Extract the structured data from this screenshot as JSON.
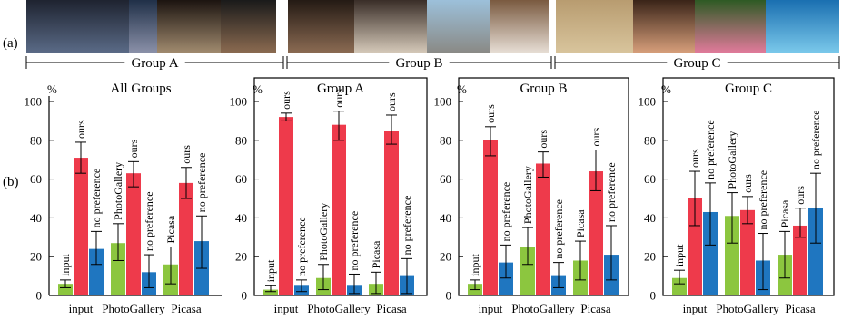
{
  "part_labels": {
    "a": "(a)",
    "b": "(b)"
  },
  "photo_groups": [
    {
      "label": "Group A",
      "photos": [
        "street-night-photo",
        "castle-dusk-photo",
        "sunset-water-photo",
        "woman-shop-photo"
      ]
    },
    {
      "label": "Group B",
      "photos": [
        "group-friends-photo",
        "kids-sofa-photo",
        "harbor-boats-photo",
        "girl-portrait-photo"
      ]
    },
    {
      "label": "Group C",
      "photos": [
        "gate-arch-photo",
        "boy-closeup-photo",
        "pink-flowers-photo",
        "dolphin-show-photo"
      ]
    }
  ],
  "colors": {
    "input": "#8cc63f",
    "ours": "#ee3a4b",
    "no_preference": "#1f76c0",
    "axis": "#000000",
    "photo_palette": [
      "#3a4150",
      "#6a7a9a",
      "#8c7f70",
      "#4a3a33",
      "#5a4a40",
      "#b0aaa0",
      "#7fa0c0",
      "#b3a089",
      "#c9b48d",
      "#c8906a",
      "#c87a90",
      "#2a8fc4"
    ]
  },
  "chart_data": [
    {
      "type": "bar",
      "title": "All Groups",
      "unit": "%",
      "ylim": [
        0,
        100
      ],
      "yticks": [
        0,
        20,
        40,
        60,
        80,
        100
      ],
      "categories": [
        "input",
        "PhotoGallery",
        "Picasa"
      ],
      "bars": [
        {
          "category": "input",
          "label": "input",
          "color": "input",
          "value": 6,
          "err": [
            4,
            8
          ]
        },
        {
          "category": "input",
          "label": "ours",
          "color": "ours",
          "value": 71,
          "err": [
            63,
            79
          ]
        },
        {
          "category": "input",
          "label": "no preference",
          "color": "no_preference",
          "value": 24,
          "err": [
            16,
            33
          ]
        },
        {
          "category": "PhotoGallery",
          "label": "PhotoGallery",
          "color": "input",
          "value": 27,
          "err": [
            18,
            37
          ]
        },
        {
          "category": "PhotoGallery",
          "label": "ours",
          "color": "ours",
          "value": 63,
          "err": [
            56,
            69
          ]
        },
        {
          "category": "PhotoGallery",
          "label": "no preference",
          "color": "no_preference",
          "value": 12,
          "err": [
            4,
            21
          ]
        },
        {
          "category": "Picasa",
          "label": "Picasa",
          "color": "input",
          "value": 16,
          "err": [
            6,
            25
          ]
        },
        {
          "category": "Picasa",
          "label": "ours",
          "color": "ours",
          "value": 58,
          "err": [
            50,
            66
          ]
        },
        {
          "category": "Picasa",
          "label": "no preference",
          "color": "no_preference",
          "value": 28,
          "err": [
            14,
            41
          ]
        }
      ]
    },
    {
      "type": "bar",
      "title": "Group A",
      "unit": "%",
      "ylim": [
        0,
        100
      ],
      "yticks": [
        0,
        20,
        40,
        60,
        80,
        100
      ],
      "categories": [
        "input",
        "PhotoGallery",
        "Picasa"
      ],
      "bars": [
        {
          "category": "input",
          "label": "input",
          "color": "input",
          "value": 3,
          "err": [
            2,
            5
          ]
        },
        {
          "category": "input",
          "label": "ours",
          "color": "ours",
          "value": 92,
          "err": [
            90,
            94
          ]
        },
        {
          "category": "input",
          "label": "no preference",
          "color": "no_preference",
          "value": 5,
          "err": [
            2,
            8
          ]
        },
        {
          "category": "PhotoGallery",
          "label": "PhotoGallery",
          "color": "input",
          "value": 9,
          "err": [
            3,
            16
          ]
        },
        {
          "category": "PhotoGallery",
          "label": "ours",
          "color": "ours",
          "value": 88,
          "err": [
            80,
            95
          ]
        },
        {
          "category": "PhotoGallery",
          "label": "no preference",
          "color": "no_preference",
          "value": 5,
          "err": [
            1,
            11
          ]
        },
        {
          "category": "Picasa",
          "label": "Picasa",
          "color": "input",
          "value": 6,
          "err": [
            1,
            12
          ]
        },
        {
          "category": "Picasa",
          "label": "ours",
          "color": "ours",
          "value": 85,
          "err": [
            78,
            93
          ]
        },
        {
          "category": "Picasa",
          "label": "no preference",
          "color": "no_preference",
          "value": 10,
          "err": [
            1,
            19
          ]
        }
      ]
    },
    {
      "type": "bar",
      "title": "Group B",
      "unit": "%",
      "ylim": [
        0,
        100
      ],
      "yticks": [
        0,
        20,
        40,
        60,
        80,
        100
      ],
      "categories": [
        "input",
        "PhotoGallery",
        "Picasa"
      ],
      "bars": [
        {
          "category": "input",
          "label": "input",
          "color": "input",
          "value": 6,
          "err": [
            3,
            8
          ]
        },
        {
          "category": "input",
          "label": "ours",
          "color": "ours",
          "value": 80,
          "err": [
            72,
            87
          ]
        },
        {
          "category": "input",
          "label": "no preference",
          "color": "no_preference",
          "value": 17,
          "err": [
            9,
            26
          ]
        },
        {
          "category": "PhotoGallery",
          "label": "PhotoGallery",
          "color": "input",
          "value": 25,
          "err": [
            16,
            35
          ]
        },
        {
          "category": "PhotoGallery",
          "label": "ours",
          "color": "ours",
          "value": 68,
          "err": [
            61,
            74
          ]
        },
        {
          "category": "PhotoGallery",
          "label": "no preference",
          "color": "no_preference",
          "value": 10,
          "err": [
            4,
            17
          ]
        },
        {
          "category": "Picasa",
          "label": "Picasa",
          "color": "input",
          "value": 18,
          "err": [
            8,
            28
          ]
        },
        {
          "category": "Picasa",
          "label": "ours",
          "color": "ours",
          "value": 64,
          "err": [
            54,
            75
          ]
        },
        {
          "category": "Picasa",
          "label": "no preference",
          "color": "no_preference",
          "value": 21,
          "err": [
            8,
            36
          ]
        }
      ]
    },
    {
      "type": "bar",
      "title": "Group C",
      "unit": "%",
      "ylim": [
        0,
        100
      ],
      "yticks": [
        0,
        20,
        40,
        60,
        80,
        100
      ],
      "categories": [
        "input",
        "PhotoGallery",
        "Picasa"
      ],
      "bars": [
        {
          "category": "input",
          "label": "input",
          "color": "input",
          "value": 9,
          "err": [
            6,
            13
          ]
        },
        {
          "category": "input",
          "label": "ours",
          "color": "ours",
          "value": 50,
          "err": [
            36,
            64
          ]
        },
        {
          "category": "input",
          "label": "no preference",
          "color": "no_preference",
          "value": 43,
          "err": [
            26,
            58
          ]
        },
        {
          "category": "PhotoGallery",
          "label": "PhotoGallery",
          "color": "input",
          "value": 41,
          "err": [
            27,
            53
          ]
        },
        {
          "category": "PhotoGallery",
          "label": "ours",
          "color": "ours",
          "value": 44,
          "err": [
            37,
            51
          ]
        },
        {
          "category": "PhotoGallery",
          "label": "no preference",
          "color": "no_preference",
          "value": 18,
          "err": [
            3,
            32
          ]
        },
        {
          "category": "Picasa",
          "label": "Picasa",
          "color": "input",
          "value": 21,
          "err": [
            9,
            33
          ]
        },
        {
          "category": "Picasa",
          "label": "ours",
          "color": "ours",
          "value": 36,
          "err": [
            30,
            45
          ]
        },
        {
          "category": "Picasa",
          "label": "no preference",
          "color": "no_preference",
          "value": 45,
          "err": [
            27,
            63
          ]
        }
      ]
    }
  ]
}
